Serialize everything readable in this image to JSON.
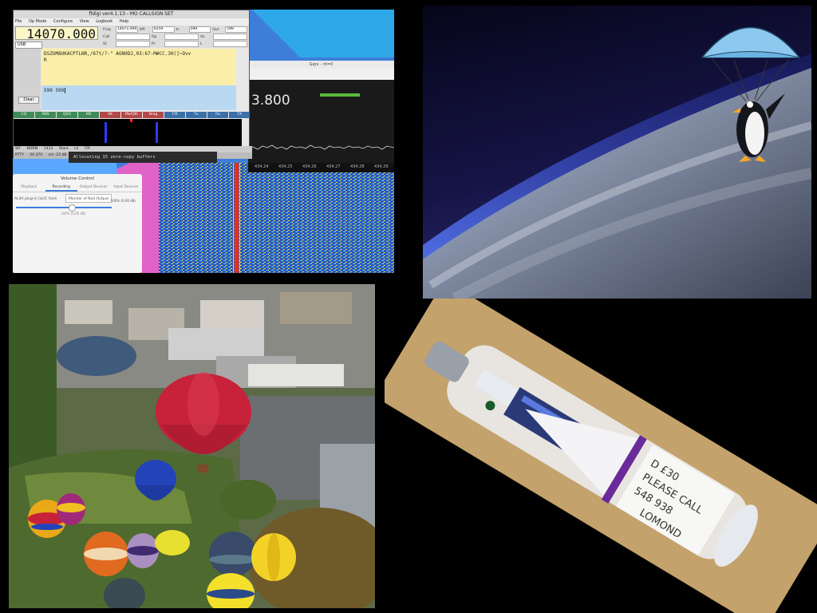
{
  "fldigi": {
    "title": "fldigi ver4.1.13 - MO CALLSIGN SET",
    "menu": [
      "File",
      "Op Mode",
      "Configure",
      "View",
      "Logbook",
      "Help"
    ],
    "frequency": "14070.000",
    "mode": "USB",
    "rx_text": "DSZUM8UKACPTLNR,/67t/?-\" AGN0D2,03:67-M#CC.30(]~Ovv",
    "rx_line2": "R",
    "tx_text": "599 599",
    "clear_label": "Clear",
    "macros": [
      "CQ",
      "ANS",
      "QSO",
      "KN",
      "SK",
      "Me/Qth",
      "Brag",
      "T/R",
      "Tx",
      "Rx",
      "TX"
    ],
    "status_items": [
      "RTTY",
      "50.370",
      "s/n -23 dB"
    ],
    "status_bottom": [
      "WF",
      "NORM",
      "1413",
      "Store",
      "Lk",
      "T/R"
    ],
    "log_labels": [
      "Freq",
      "Off",
      "In",
      "Out",
      "Call",
      "Op",
      "Az",
      "St",
      "Pr",
      "L"
    ],
    "log_values": [
      "14071.494",
      "0259",
      "599",
      "599"
    ]
  },
  "terminal_text": "Allocating 15 zero-copy buffers",
  "gqrx": {
    "title": "Gqrx - rtl=0",
    "frequency": "3.800",
    "axis_ticks": [
      "434.24",
      "434.25",
      "434.26",
      "434.27",
      "434.28",
      "434.29"
    ]
  },
  "volume_control": {
    "title": "Volume Control",
    "tabs": [
      "Playback",
      "Recording",
      "Output Devices",
      "Input Devices"
    ],
    "active_tab": 1,
    "stream_name": "ALSA plug-in [ocl]: from",
    "device": "Monitor of Null Output",
    "level": "100% (0.00 dB)",
    "sub_level": "100% (0.00 dB)"
  },
  "bottle_label_lines": [
    "D £30",
    "PLEASE CALL",
    "548 938",
    "LOMOND"
  ],
  "colors": {
    "fldigi_rx": "#fbeea8",
    "fldigi_tx": "#b9d9f2",
    "waterfall_signal": "#ff2a00",
    "desktop_blue": "#3d7fd8"
  }
}
